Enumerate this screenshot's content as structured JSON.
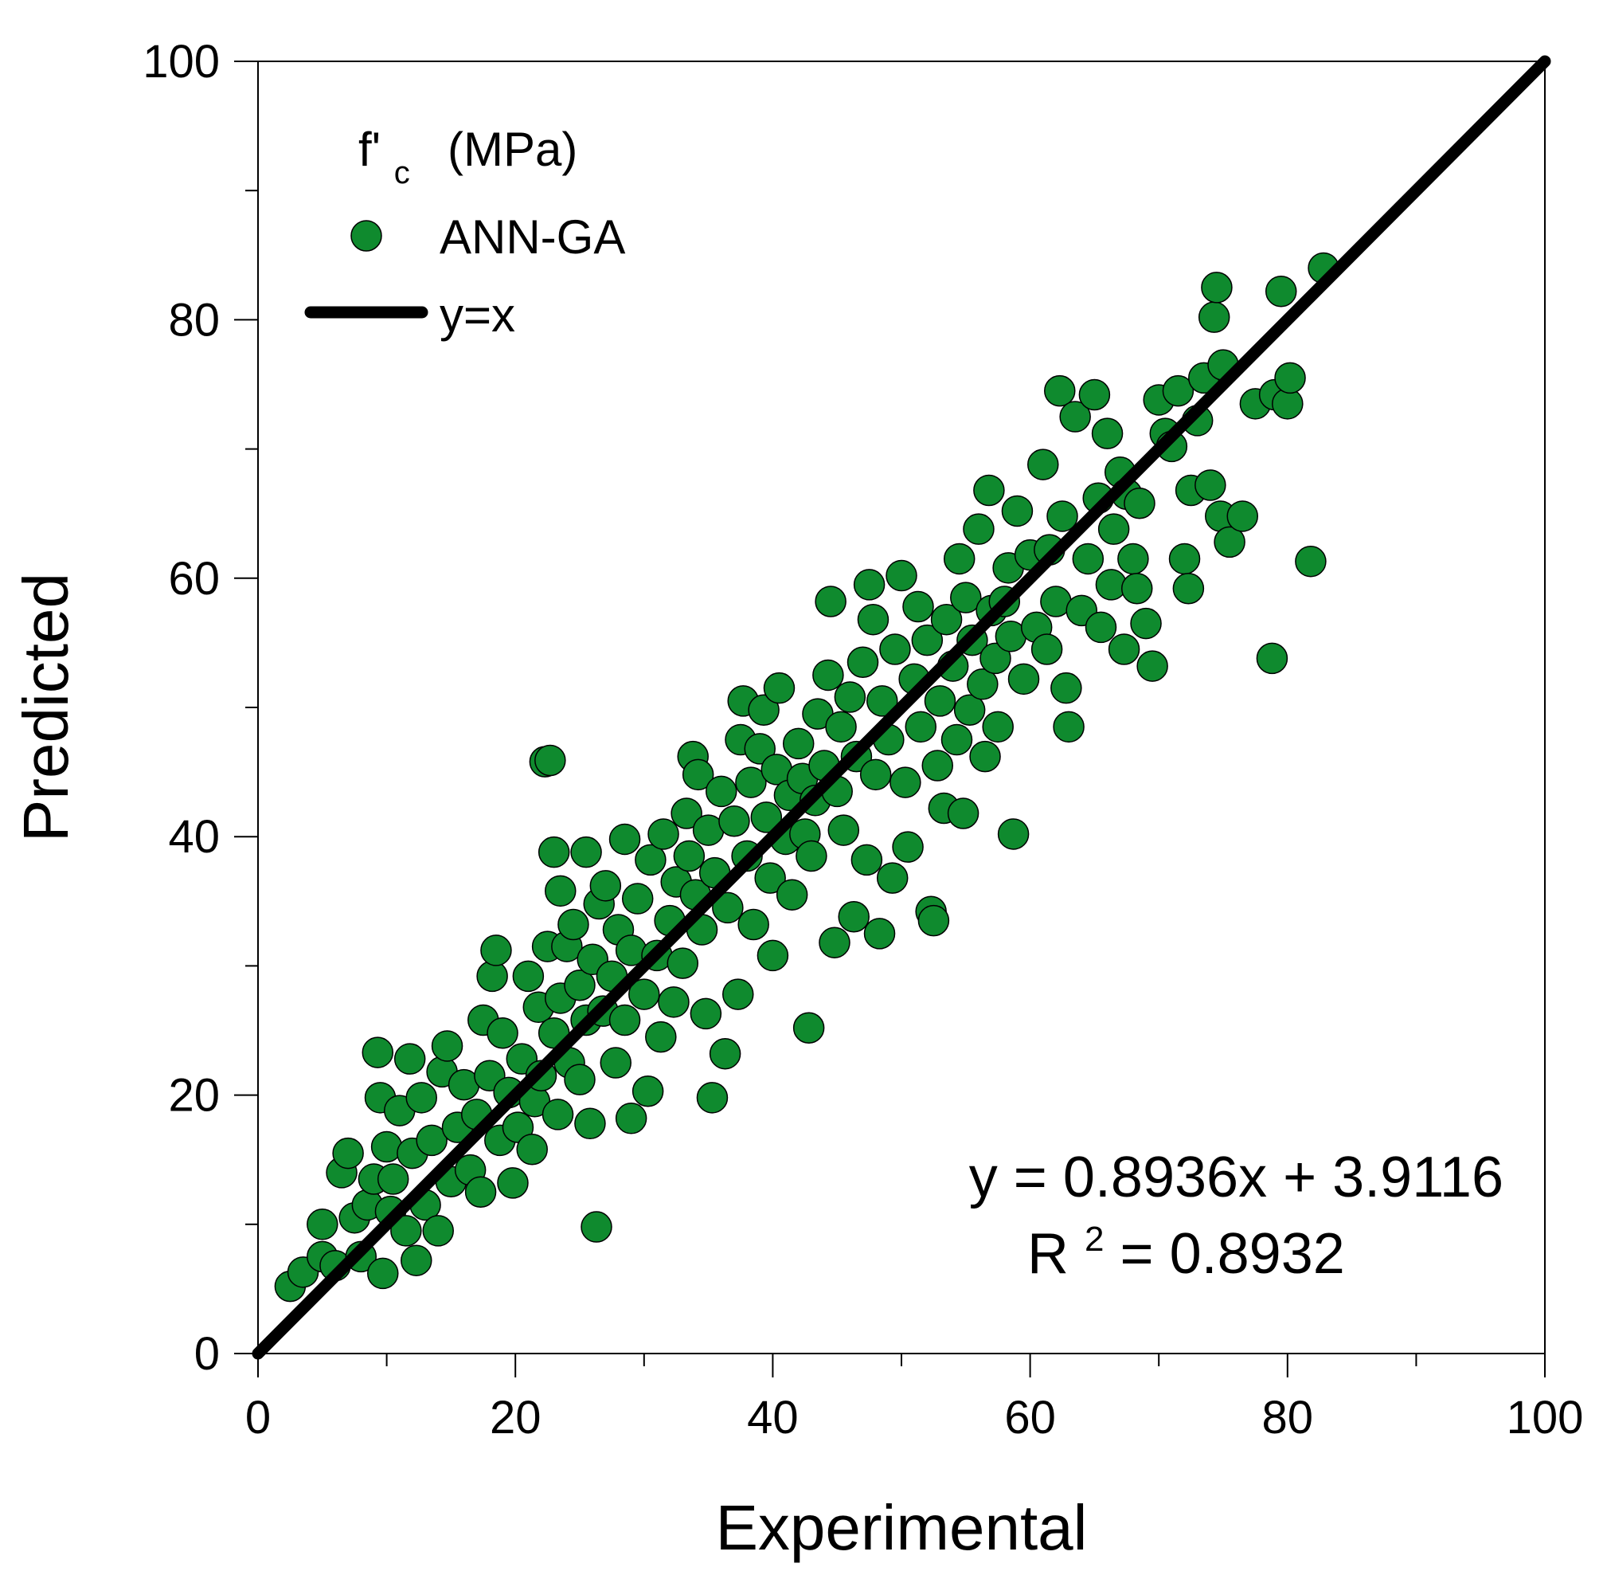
{
  "chart_data": {
    "type": "scatter",
    "title": "",
    "xlabel": "Experimental",
    "ylabel": "Predicted",
    "xlim": [
      0,
      100
    ],
    "ylim": [
      0,
      100
    ],
    "xticks": [
      "0",
      "20",
      "40",
      "60",
      "80",
      "100"
    ],
    "yticks": [
      "0",
      "20",
      "40",
      "60",
      "80",
      "100"
    ],
    "grid": false,
    "colors": {
      "marker": "#0f8a2e",
      "marker_edge": "#000000",
      "line": "#000000"
    },
    "legend": {
      "title_main": "f'",
      "title_sub": "c",
      "title_unit": "(MPa)",
      "entries": [
        "ANN-GA",
        "y=x"
      ],
      "placement": "top-left"
    },
    "annotations": {
      "equation": "y = 0.8936x + 3.9116",
      "r2_prefix": "R",
      "r2_sup": "2",
      "r2_value": " = 0.8932"
    },
    "reference_line": {
      "name": "y=x",
      "x": [
        0,
        100
      ],
      "y": [
        0,
        100
      ]
    },
    "fit": {
      "slope": 0.8936,
      "intercept": 3.9116,
      "r2": 0.8932
    },
    "series": [
      {
        "name": "ANN-GA",
        "points": [
          [
            2.5,
            5.2
          ],
          [
            3.5,
            6.3
          ],
          [
            5,
            10
          ],
          [
            5,
            7.5
          ],
          [
            6,
            6.8
          ],
          [
            6.5,
            14
          ],
          [
            7,
            15.5
          ],
          [
            7.5,
            10.5
          ],
          [
            8,
            7.5
          ],
          [
            8.5,
            11.5
          ],
          [
            9,
            13.5
          ],
          [
            9.3,
            23.3
          ],
          [
            9.5,
            19.8
          ],
          [
            9.7,
            6.2
          ],
          [
            10,
            16
          ],
          [
            10.3,
            11
          ],
          [
            10.5,
            13.5
          ],
          [
            11,
            18.8
          ],
          [
            11.5,
            9.5
          ],
          [
            11.8,
            22.8
          ],
          [
            12,
            15.5
          ],
          [
            12.3,
            7.2
          ],
          [
            12.7,
            19.8
          ],
          [
            13,
            11.5
          ],
          [
            13.5,
            16.5
          ],
          [
            14,
            9.5
          ],
          [
            14.3,
            21.8
          ],
          [
            14.7,
            23.8
          ],
          [
            15,
            13.3
          ],
          [
            15.5,
            17.5
          ],
          [
            16,
            20.8
          ],
          [
            16.5,
            14.2
          ],
          [
            17,
            18.5
          ],
          [
            17.3,
            12.5
          ],
          [
            17.5,
            25.8
          ],
          [
            18,
            21.5
          ],
          [
            18.2,
            29.2
          ],
          [
            18.5,
            31.2
          ],
          [
            18.8,
            16.5
          ],
          [
            19,
            24.8
          ],
          [
            19.5,
            20.2
          ],
          [
            19.8,
            13.2
          ],
          [
            20.2,
            17.5
          ],
          [
            20.5,
            22.8
          ],
          [
            21,
            29.2
          ],
          [
            21.3,
            15.8
          ],
          [
            21.5,
            19.5
          ],
          [
            21.8,
            26.8
          ],
          [
            22,
            21.5
          ],
          [
            22.3,
            45.8
          ],
          [
            22.7,
            45.9
          ],
          [
            22.5,
            31.5
          ],
          [
            23,
            24.8
          ],
          [
            23,
            38.8
          ],
          [
            23.3,
            18.5
          ],
          [
            23.5,
            27.5
          ],
          [
            23.5,
            35.8
          ],
          [
            24,
            31.5
          ],
          [
            24.2,
            22.5
          ],
          [
            24.5,
            33.2
          ],
          [
            25,
            28.5
          ],
          [
            25,
            21.2
          ],
          [
            25.5,
            25.8
          ],
          [
            25.5,
            38.8
          ],
          [
            25.8,
            17.8
          ],
          [
            26,
            30.5
          ],
          [
            26.3,
            9.8
          ],
          [
            26.5,
            34.8
          ],
          [
            26.8,
            26.5
          ],
          [
            27,
            36.2
          ],
          [
            27.5,
            29.2
          ],
          [
            27.8,
            22.5
          ],
          [
            28,
            32.8
          ],
          [
            28.5,
            25.8
          ],
          [
            28.5,
            39.8
          ],
          [
            29,
            31.2
          ],
          [
            29,
            18.2
          ],
          [
            29.5,
            35.2
          ],
          [
            30,
            27.8
          ],
          [
            30.3,
            20.3
          ],
          [
            30.5,
            38.2
          ],
          [
            31,
            30.8
          ],
          [
            31.3,
            24.5
          ],
          [
            31.5,
            40.2
          ],
          [
            32,
            33.5
          ],
          [
            32.3,
            27.2
          ],
          [
            32.5,
            36.5
          ],
          [
            33,
            30.2
          ],
          [
            33.3,
            41.8
          ],
          [
            33.5,
            38.5
          ],
          [
            33.8,
            46.2
          ],
          [
            34,
            35.5
          ],
          [
            34.2,
            44.8
          ],
          [
            34.5,
            32.8
          ],
          [
            34.8,
            26.3
          ],
          [
            35,
            40.5
          ],
          [
            35.3,
            19.8
          ],
          [
            35.5,
            37.2
          ],
          [
            36,
            43.5
          ],
          [
            36.3,
            23.2
          ],
          [
            36.5,
            34.5
          ],
          [
            37,
            41.2
          ],
          [
            37.3,
            27.8
          ],
          [
            37.5,
            47.5
          ],
          [
            37.7,
            50.5
          ],
          [
            38,
            38.5
          ],
          [
            38.3,
            44.2
          ],
          [
            38.5,
            33.2
          ],
          [
            39,
            46.8
          ],
          [
            39.3,
            49.8
          ],
          [
            39.5,
            41.5
          ],
          [
            39.8,
            36.8
          ],
          [
            40,
            30.8
          ],
          [
            40.3,
            45.2
          ],
          [
            40.5,
            51.5
          ],
          [
            41,
            39.8
          ],
          [
            41.3,
            43.2
          ],
          [
            41.5,
            35.5
          ],
          [
            42,
            47.2
          ],
          [
            42.3,
            44.5
          ],
          [
            42.5,
            40.2
          ],
          [
            42.8,
            25.2
          ],
          [
            43,
            38.5
          ],
          [
            43.3,
            42.8
          ],
          [
            43.5,
            49.5
          ],
          [
            44,
            45.5
          ],
          [
            44.3,
            52.5
          ],
          [
            44.5,
            58.2
          ],
          [
            44.8,
            31.8
          ],
          [
            45,
            43.5
          ],
          [
            45.3,
            48.5
          ],
          [
            45.5,
            40.5
          ],
          [
            46,
            50.8
          ],
          [
            46.3,
            33.8
          ],
          [
            46.5,
            46.2
          ],
          [
            47,
            53.5
          ],
          [
            47.3,
            38.2
          ],
          [
            47.5,
            59.5
          ],
          [
            47.8,
            56.8
          ],
          [
            48,
            44.8
          ],
          [
            48.3,
            32.5
          ],
          [
            48.5,
            50.5
          ],
          [
            49,
            47.5
          ],
          [
            49.3,
            36.8
          ],
          [
            49.5,
            54.5
          ],
          [
            50,
            60.2
          ],
          [
            50.3,
            44.2
          ],
          [
            50.5,
            39.2
          ],
          [
            51,
            52.2
          ],
          [
            51.3,
            57.8
          ],
          [
            51.5,
            48.5
          ],
          [
            52,
            55.2
          ],
          [
            52.3,
            34.2
          ],
          [
            52.5,
            33.5
          ],
          [
            52.8,
            45.5
          ],
          [
            53,
            50.5
          ],
          [
            53.3,
            42.2
          ],
          [
            53.5,
            56.8
          ],
          [
            54,
            53.2
          ],
          [
            54.3,
            47.5
          ],
          [
            54.5,
            61.5
          ],
          [
            54.8,
            41.8
          ],
          [
            55,
            58.5
          ],
          [
            55.3,
            49.8
          ],
          [
            55.5,
            55.2
          ],
          [
            56,
            63.8
          ],
          [
            56.3,
            51.8
          ],
          [
            56.5,
            46.2
          ],
          [
            56.8,
            66.8
          ],
          [
            57,
            57.5
          ],
          [
            57.3,
            53.8
          ],
          [
            57.5,
            48.5
          ],
          [
            58,
            58.2
          ],
          [
            58.3,
            60.8
          ],
          [
            58.5,
            55.5
          ],
          [
            58.7,
            40.2
          ],
          [
            59,
            65.2
          ],
          [
            59.5,
            52.2
          ],
          [
            60,
            61.8
          ],
          [
            60.5,
            56.2
          ],
          [
            61,
            68.8
          ],
          [
            61.3,
            54.5
          ],
          [
            61.5,
            62.2
          ],
          [
            62,
            58.2
          ],
          [
            62.3,
            74.5
          ],
          [
            62.5,
            64.8
          ],
          [
            62.8,
            51.5
          ],
          [
            63,
            48.5
          ],
          [
            63.5,
            72.5
          ],
          [
            64,
            57.5
          ],
          [
            64.5,
            61.5
          ],
          [
            65,
            74.2
          ],
          [
            65.3,
            66.2
          ],
          [
            65.5,
            56.2
          ],
          [
            66,
            71.2
          ],
          [
            66.3,
            59.5
          ],
          [
            66.5,
            63.8
          ],
          [
            67,
            68.2
          ],
          [
            67.3,
            54.5
          ],
          [
            67.5,
            66.5
          ],
          [
            68,
            61.5
          ],
          [
            68.3,
            59.2
          ],
          [
            68.5,
            65.8
          ],
          [
            69,
            56.5
          ],
          [
            69.5,
            53.2
          ],
          [
            70,
            73.8
          ],
          [
            70.5,
            71.2
          ],
          [
            71,
            70.2
          ],
          [
            71.5,
            74.5
          ],
          [
            72,
            61.5
          ],
          [
            72.3,
            59.2
          ],
          [
            72.5,
            66.8
          ],
          [
            73,
            72.2
          ],
          [
            73.5,
            75.5
          ],
          [
            74,
            67.2
          ],
          [
            74.3,
            80.2
          ],
          [
            74.5,
            82.5
          ],
          [
            74.8,
            64.8
          ],
          [
            75,
            76.5
          ],
          [
            75.5,
            62.8
          ],
          [
            76.5,
            64.8
          ],
          [
            77.5,
            73.5
          ],
          [
            78.8,
            53.8
          ],
          [
            79,
            74.2
          ],
          [
            79.5,
            82.2
          ],
          [
            80,
            73.5
          ],
          [
            80.2,
            75.5
          ],
          [
            81.8,
            61.3
          ],
          [
            82.8,
            84
          ]
        ]
      }
    ]
  }
}
